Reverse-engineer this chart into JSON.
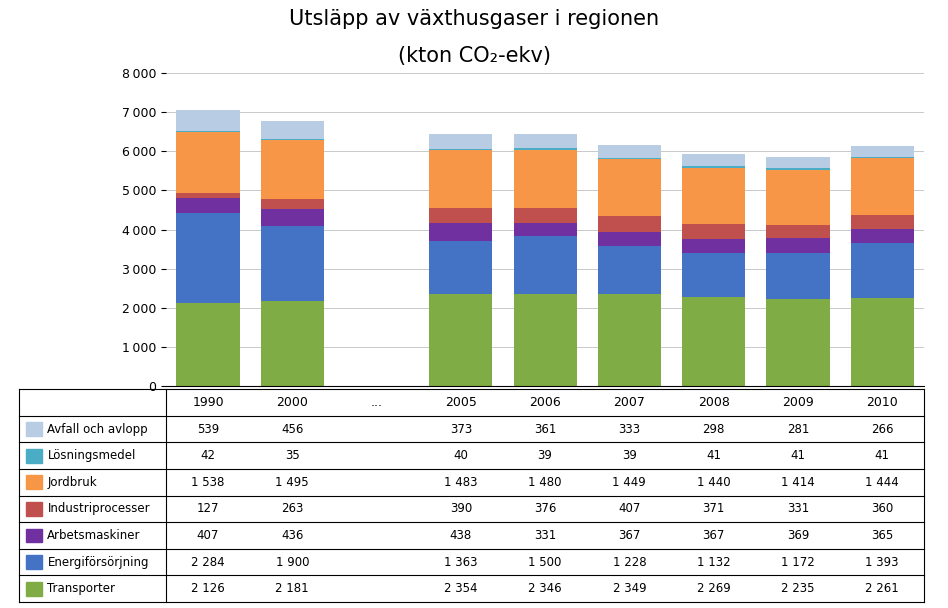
{
  "title_line1": "Utsläpp av växthusgaser i regionen",
  "title_line2": "(kton CO₂-ekv)",
  "years_header": [
    "1990",
    "2000",
    "...",
    "2005",
    "2006",
    "2007",
    "2008",
    "2009",
    "2010"
  ],
  "bar_years": [
    "1990",
    "2000",
    "2005",
    "2006",
    "2007",
    "2008",
    "2009",
    "2010"
  ],
  "categories": [
    "Transporter",
    "Energiförsörjning",
    "Arbetsmaskiner",
    "Industriprocesser",
    "Jordbruk",
    "Lösningsmedel",
    "Avfall och avlopp"
  ],
  "colors": [
    "#7fac44",
    "#4472c4",
    "#7030a0",
    "#c0504d",
    "#f79646",
    "#4bacc6",
    "#b8cce4"
  ],
  "data": {
    "Transporter": [
      2126,
      2181,
      2354,
      2346,
      2349,
      2269,
      2235,
      2261
    ],
    "Energiförsörjning": [
      2284,
      1900,
      1363,
      1500,
      1228,
      1132,
      1172,
      1393
    ],
    "Arbetsmaskiner": [
      407,
      436,
      438,
      331,
      367,
      367,
      369,
      365
    ],
    "Industriprocesser": [
      127,
      263,
      390,
      376,
      407,
      371,
      331,
      360
    ],
    "Jordbruk": [
      1538,
      1495,
      1483,
      1480,
      1449,
      1440,
      1414,
      1444
    ],
    "Lösningsmedel": [
      42,
      35,
      40,
      39,
      39,
      41,
      41,
      41
    ],
    "Avfall och avlopp": [
      539,
      456,
      373,
      361,
      333,
      298,
      281,
      266
    ]
  },
  "ylim": [
    0,
    8000
  ],
  "yticks": [
    0,
    1000,
    2000,
    3000,
    4000,
    5000,
    6000,
    7000,
    8000
  ],
  "table_rows_order": [
    "Avfall och avlopp",
    "Lösningsmedel",
    "Jordbruk",
    "Industriprocesser",
    "Arbetsmaskiner",
    "Energiförsörjning",
    "Transporter"
  ],
  "table_data": {
    "Avfall och avlopp": [
      "539",
      "456",
      "",
      "373",
      "361",
      "333",
      "298",
      "281",
      "266"
    ],
    "Lösningsmedel": [
      "42",
      "35",
      "",
      "40",
      "39",
      "39",
      "41",
      "41",
      "41"
    ],
    "Jordbruk": [
      "1 538",
      "1 495",
      "",
      "1 483",
      "1 480",
      "1 449",
      "1 440",
      "1 414",
      "1 444"
    ],
    "Industriprocesser": [
      "127",
      "263",
      "",
      "390",
      "376",
      "407",
      "371",
      "331",
      "360"
    ],
    "Arbetsmaskiner": [
      "407",
      "436",
      "",
      "438",
      "331",
      "367",
      "367",
      "369",
      "365"
    ],
    "Energiförsörjning": [
      "2 284",
      "1 900",
      "",
      "1 363",
      "1 500",
      "1 228",
      "1 132",
      "1 172",
      "1 393"
    ],
    "Transporter": [
      "2 126",
      "2 181",
      "",
      "2 354",
      "2 346",
      "2 349",
      "2 269",
      "2 235",
      "2 261"
    ]
  },
  "table_colors": {
    "Avfall och avlopp": "#b8cce4",
    "Lösningsmedel": "#4bacc6",
    "Jordbruk": "#f79646",
    "Industriprocesser": "#c0504d",
    "Arbetsmaskiner": "#7030a0",
    "Energiförsörjning": "#4472c4",
    "Transporter": "#7fac44"
  },
  "background_color": "#ffffff"
}
